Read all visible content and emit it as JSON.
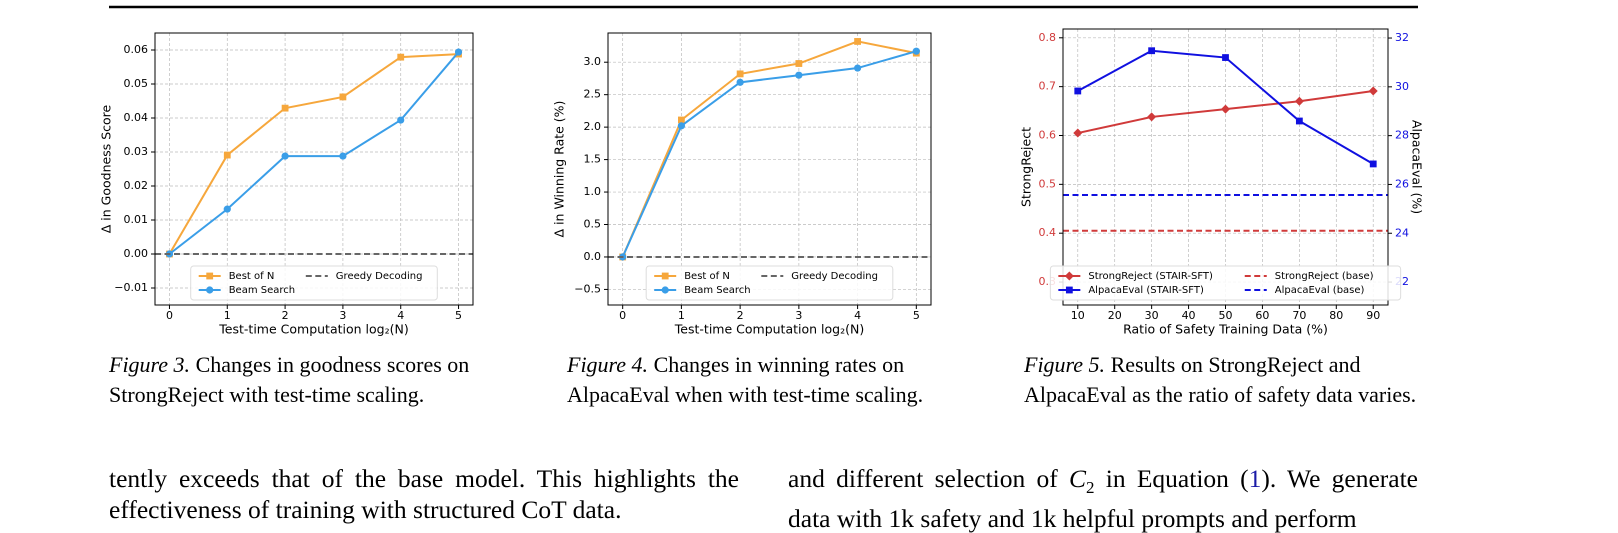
{
  "chart_data": [
    {
      "type": "line",
      "xlabel": "Test-time Computation log₂(N)",
      "ylabel": "Δ in Goodness Score",
      "x": [
        0,
        1,
        2,
        3,
        4,
        5
      ],
      "xlim": [
        -0.25,
        5.25
      ],
      "xticks": [
        0,
        1,
        2,
        3,
        4,
        5
      ],
      "ylim": [
        -0.015,
        0.065
      ],
      "yticks": [
        {
          "value": -0.01,
          "label": "−0.01"
        },
        {
          "value": 0,
          "label": "0.00"
        },
        0.01,
        0.02,
        0.03,
        0.04,
        0.05,
        0.06
      ],
      "grid": true,
      "legend": "lower center",
      "series": [
        {
          "name": "Best of N",
          "color": "#f6a73c",
          "marker": "square",
          "values": [
            0,
            0.0291,
            0.0429,
            0.0462,
            0.0579,
            0.0588
          ]
        },
        {
          "name": "Beam Search",
          "color": "#3a9ee8",
          "marker": "circle",
          "values": [
            0,
            0.0132,
            0.0288,
            0.0288,
            0.0394,
            0.0594
          ]
        },
        {
          "name": "Greedy Decoding",
          "color": "#666666",
          "style": "dashed",
          "hline": 0
        }
      ]
    },
    {
      "type": "line",
      "xlabel": "Test-time Computation log₂(N)",
      "ylabel": "Δ in Winning Rate (%)",
      "x": [
        0,
        1,
        2,
        3,
        4,
        5
      ],
      "xlim": [
        -0.25,
        5.25
      ],
      "xticks": [
        0,
        1,
        2,
        3,
        4,
        5
      ],
      "ylim": [
        -0.74,
        3.45
      ],
      "yticks": [
        {
          "value": -0.5,
          "label": "−0.5"
        },
        {
          "value": 0,
          "label": "0.0"
        },
        0.5,
        {
          "value": 1,
          "label": "1.0"
        },
        1.5,
        {
          "value": 2,
          "label": "2.0"
        },
        2.5,
        {
          "value": 3,
          "label": "3.0"
        }
      ],
      "grid": true,
      "legend": "lower center",
      "series": [
        {
          "name": "Best of N",
          "color": "#f6a73c",
          "marker": "square",
          "values": [
            0,
            2.11,
            2.82,
            2.98,
            3.32,
            3.14
          ]
        },
        {
          "name": "Beam Search",
          "color": "#3a9ee8",
          "marker": "circle",
          "values": [
            0,
            2.02,
            2.69,
            2.8,
            2.91,
            3.17
          ]
        },
        {
          "name": "Greedy Decoding",
          "color": "#666666",
          "style": "dashed",
          "hline": 0
        }
      ]
    },
    {
      "type": "line",
      "xlabel": "Ratio of Safety Training Data (%)",
      "ylabel": "StrongReject",
      "y2label": "AlpacaEval (%)",
      "x": [
        10,
        30,
        50,
        70,
        90
      ],
      "xlim": [
        6,
        94
      ],
      "xticks": [
        10,
        20,
        30,
        40,
        50,
        60,
        70,
        80,
        90
      ],
      "ylim": [
        0.253,
        0.818
      ],
      "yticks": [
        0.3,
        0.4,
        0.5,
        0.6,
        0.7,
        0.8
      ],
      "ytick_color": "#d03a3a",
      "y2lim": [
        21.06,
        32.37
      ],
      "y2ticks": [
        22,
        24,
        26,
        28,
        30,
        32
      ],
      "y2tick_color": "#1010e0",
      "grid": true,
      "legend": "lower center",
      "series": [
        {
          "name": "StrongReject (STAIR-SFT)",
          "color": "#d03a3a",
          "marker": "diamond",
          "values": [
            0.605,
            0.638,
            0.654,
            0.67,
            0.691
          ]
        },
        {
          "name": "AlpacaEval (STAIR-SFT)",
          "color": "#1010e0",
          "marker": "square",
          "axis": "y2",
          "values": [
            29.83,
            31.48,
            31.2,
            28.6,
            26.84
          ]
        },
        {
          "name": "StrongReject (base)",
          "color": "#d03a3a",
          "style": "dashed",
          "hline": 0.405
        },
        {
          "name": "AlpacaEval (base)",
          "color": "#1010e0",
          "style": "dashed",
          "axis": "y2",
          "hline": 25.57
        }
      ]
    }
  ],
  "captions": [
    {
      "label": "Figure 3.",
      "text": "Changes in goodness scores on StrongReject with test-time scaling."
    },
    {
      "label": "Figure 4.",
      "text": "Changes in winning rates on AlpacaEval when with test-time scaling."
    },
    {
      "label": "Figure 5.",
      "text": "Results on StrongReject and AlpacaEval as the ratio of safety data varies."
    }
  ],
  "body": {
    "left": "tently exceeds that of the base model. This highlights the effectiveness of training with structured CoT data.",
    "right": [
      "and different selection of ",
      "C",
      "2",
      " in Equation (",
      "1",
      "). We generate data with 1k safety and 1k helpful prompts and perform"
    ]
  }
}
